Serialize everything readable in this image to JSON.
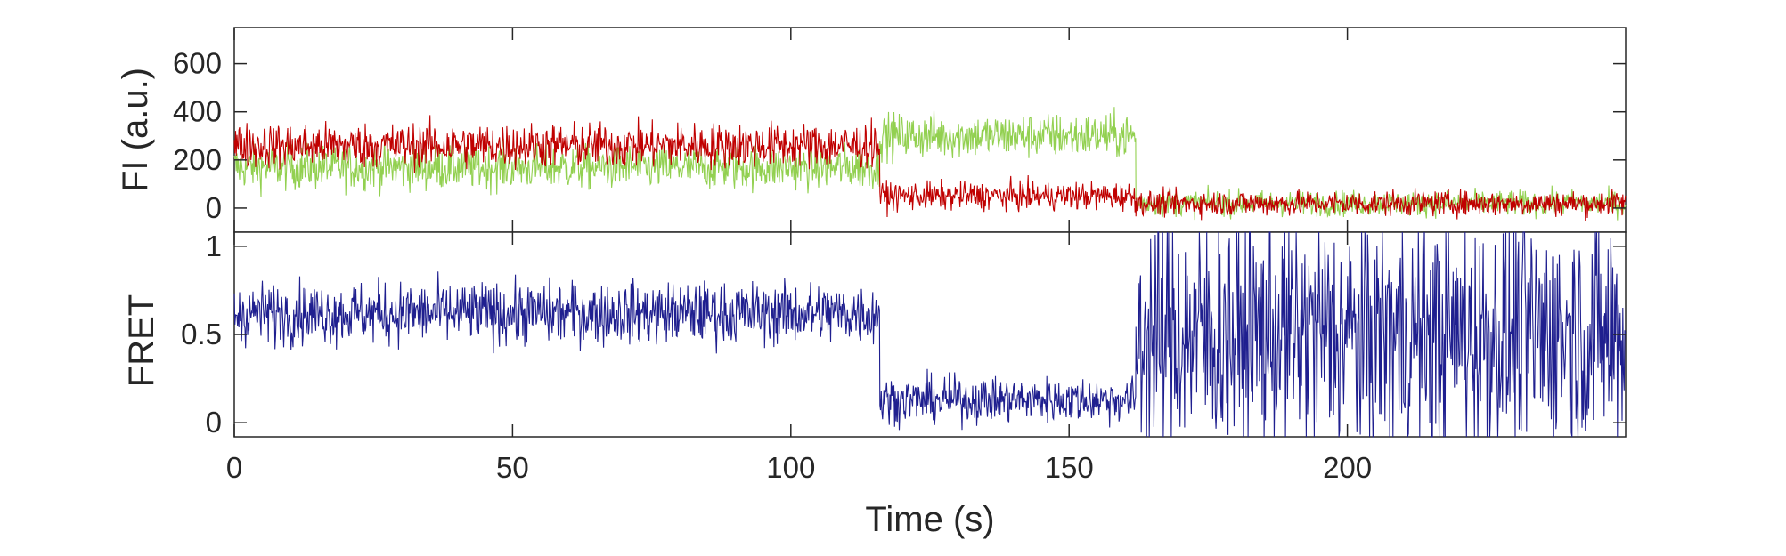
{
  "chart_data": [
    {
      "type": "line",
      "panel": "fluorescence",
      "ylabel": "FI (a.u.)",
      "xlabel": "",
      "xlim": [
        0,
        250
      ],
      "ylim": [
        -100,
        750
      ],
      "yticks": [
        0,
        200,
        400,
        600
      ],
      "grid": false,
      "legend": "none",
      "series": [
        {
          "color": "#92D050",
          "segments": [
            {
              "x0": 0,
              "x1": 116,
              "mean": 170,
              "noise": 160,
              "spike_max": 600
            },
            {
              "x0": 116,
              "x1": 162,
              "mean": 300,
              "noise": 160,
              "spike_max": 590
            },
            {
              "x0": 162,
              "x1": 250,
              "mean": 20,
              "noise": 90,
              "spike_max": 230
            }
          ]
        },
        {
          "color": "#C00000",
          "segments": [
            {
              "x0": 0,
              "x1": 116,
              "mean": 260,
              "noise": 160,
              "spike_max": 730
            },
            {
              "x0": 116,
              "x1": 162,
              "mean": 50,
              "noise": 100,
              "spike_max": 240
            },
            {
              "x0": 162,
              "x1": 250,
              "mean": 20,
              "noise": 90,
              "spike_max": 170
            }
          ]
        }
      ]
    },
    {
      "type": "line",
      "panel": "fret",
      "ylabel": "FRET",
      "xlabel": "Time (s)",
      "xlim": [
        0,
        250
      ],
      "ylim": [
        -0.08,
        1.08
      ],
      "yticks": [
        0,
        0.5,
        1
      ],
      "xticks": [
        0,
        50,
        100,
        150,
        200
      ],
      "grid": false,
      "legend": "none",
      "series": [
        {
          "color": "#1F1F8F",
          "segments": [
            {
              "x0": 0,
              "x1": 116,
              "mean": 0.62,
              "noise": 0.3
            },
            {
              "x0": 116,
              "x1": 162,
              "mean": 0.13,
              "noise": 0.22
            },
            {
              "x0": 162,
              "x1": 250,
              "mean": 0.5,
              "noise": 1.2
            }
          ]
        }
      ]
    }
  ]
}
